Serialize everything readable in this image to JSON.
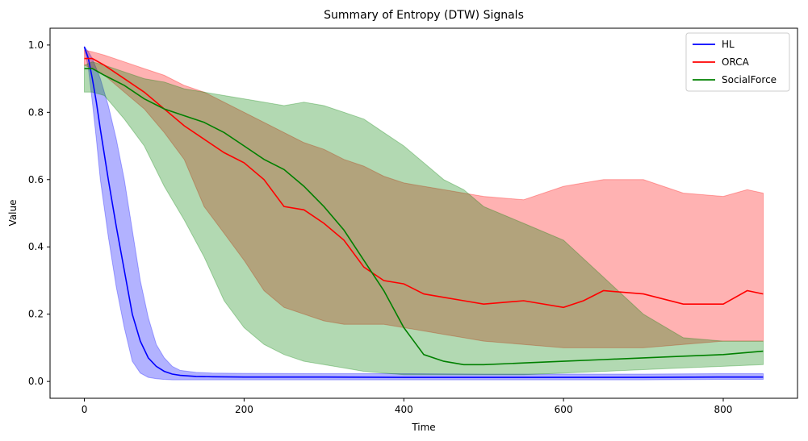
{
  "chart_data": {
    "type": "line",
    "title": "Summary of Entropy (DTW) Signals",
    "xlabel": "Time",
    "ylabel": "Value",
    "xlim": [
      -43,
      893
    ],
    "ylim": [
      -0.05,
      1.05
    ],
    "xticks": [
      0,
      200,
      400,
      600,
      800
    ],
    "yticks": [
      0.0,
      0.2,
      0.4,
      0.6,
      0.8,
      1.0
    ],
    "grid": false,
    "legend_position": "top-right",
    "series": [
      {
        "name": "HL",
        "color": "#0000ff",
        "x": [
          0,
          5,
          10,
          15,
          20,
          30,
          40,
          50,
          60,
          70,
          80,
          90,
          100,
          110,
          120,
          140,
          160,
          200,
          300,
          400,
          500,
          600,
          700,
          800,
          850
        ],
        "value": [
          0.995,
          0.96,
          0.9,
          0.83,
          0.75,
          0.6,
          0.46,
          0.33,
          0.2,
          0.12,
          0.07,
          0.045,
          0.03,
          0.022,
          0.018,
          0.015,
          0.014,
          0.013,
          0.013,
          0.012,
          0.012,
          0.012,
          0.012,
          0.013,
          0.013
        ],
        "upper": [
          0.995,
          0.98,
          0.96,
          0.93,
          0.9,
          0.82,
          0.72,
          0.6,
          0.45,
          0.3,
          0.19,
          0.11,
          0.07,
          0.045,
          0.033,
          0.027,
          0.025,
          0.024,
          0.023,
          0.023,
          0.022,
          0.022,
          0.022,
          0.023,
          0.023
        ],
        "lower": [
          0.99,
          0.93,
          0.83,
          0.72,
          0.6,
          0.43,
          0.28,
          0.16,
          0.06,
          0.025,
          0.012,
          0.008,
          0.006,
          0.005,
          0.005,
          0.005,
          0.005,
          0.005,
          0.005,
          0.005,
          0.005,
          0.005,
          0.005,
          0.006,
          0.006
        ]
      },
      {
        "name": "ORCA",
        "color": "#ff0000",
        "x": [
          0,
          10,
          25,
          50,
          75,
          100,
          125,
          150,
          175,
          200,
          225,
          250,
          275,
          300,
          325,
          350,
          375,
          400,
          425,
          450,
          475,
          500,
          550,
          600,
          625,
          650,
          700,
          750,
          800,
          830,
          850
        ],
        "value": [
          0.96,
          0.96,
          0.94,
          0.9,
          0.86,
          0.81,
          0.76,
          0.72,
          0.68,
          0.65,
          0.6,
          0.52,
          0.51,
          0.47,
          0.42,
          0.34,
          0.3,
          0.29,
          0.26,
          0.25,
          0.24,
          0.23,
          0.24,
          0.22,
          0.24,
          0.27,
          0.26,
          0.23,
          0.23,
          0.27,
          0.26
        ],
        "upper": [
          0.985,
          0.98,
          0.97,
          0.95,
          0.93,
          0.91,
          0.88,
          0.86,
          0.83,
          0.8,
          0.77,
          0.74,
          0.71,
          0.69,
          0.66,
          0.64,
          0.61,
          0.59,
          0.58,
          0.57,
          0.56,
          0.55,
          0.54,
          0.58,
          0.59,
          0.6,
          0.6,
          0.56,
          0.55,
          0.57,
          0.56
        ],
        "lower": [
          0.94,
          0.93,
          0.91,
          0.86,
          0.81,
          0.74,
          0.66,
          0.52,
          0.44,
          0.36,
          0.27,
          0.22,
          0.2,
          0.18,
          0.17,
          0.17,
          0.17,
          0.16,
          0.15,
          0.14,
          0.13,
          0.12,
          0.11,
          0.1,
          0.1,
          0.1,
          0.1,
          0.11,
          0.12,
          0.12,
          0.12
        ]
      },
      {
        "name": "SocialForce",
        "color": "#008000",
        "x": [
          0,
          10,
          25,
          50,
          75,
          100,
          125,
          150,
          175,
          200,
          225,
          250,
          275,
          300,
          325,
          350,
          375,
          400,
          425,
          450,
          475,
          500,
          550,
          600,
          650,
          700,
          750,
          800,
          850
        ],
        "value": [
          0.93,
          0.93,
          0.91,
          0.88,
          0.84,
          0.81,
          0.79,
          0.77,
          0.74,
          0.7,
          0.66,
          0.63,
          0.58,
          0.52,
          0.45,
          0.36,
          0.27,
          0.16,
          0.08,
          0.06,
          0.05,
          0.05,
          0.055,
          0.06,
          0.065,
          0.07,
          0.075,
          0.08,
          0.09
        ],
        "upper": [
          0.94,
          0.95,
          0.94,
          0.92,
          0.9,
          0.89,
          0.87,
          0.86,
          0.85,
          0.84,
          0.83,
          0.82,
          0.83,
          0.82,
          0.8,
          0.78,
          0.74,
          0.7,
          0.65,
          0.6,
          0.57,
          0.52,
          0.47,
          0.42,
          0.31,
          0.2,
          0.13,
          0.12,
          0.12
        ],
        "lower": [
          0.86,
          0.86,
          0.85,
          0.78,
          0.7,
          0.58,
          0.48,
          0.37,
          0.24,
          0.16,
          0.11,
          0.08,
          0.06,
          0.05,
          0.04,
          0.03,
          0.025,
          0.02,
          0.02,
          0.02,
          0.02,
          0.02,
          0.02,
          0.025,
          0.03,
          0.035,
          0.04,
          0.045,
          0.05
        ]
      }
    ]
  }
}
